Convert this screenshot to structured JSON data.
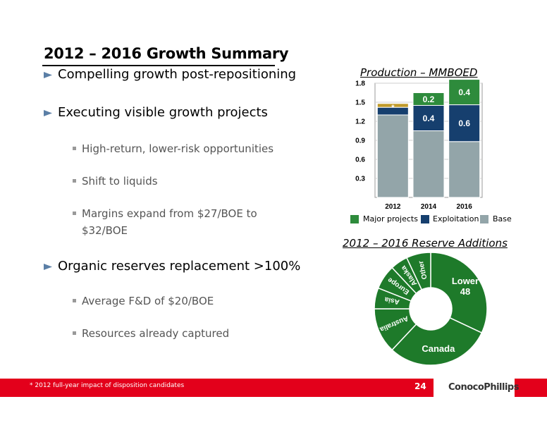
{
  "slide": {
    "title": "2012 – 2016 Growth Summary",
    "page_number": "24",
    "footnote": "* 2012 full-year impact of disposition candidates",
    "logo_text": "ConocoPhillips"
  },
  "bullets": [
    {
      "level": 1,
      "text": "Compelling growth post-repositioning"
    },
    {
      "level": 1,
      "text": "Executing visible growth projects"
    },
    {
      "level": 2,
      "text": "High-return, lower-risk opportunities"
    },
    {
      "level": 2,
      "text": "Shift to liquids"
    },
    {
      "level": 2,
      "text": "Margins expand from $27/BOE to $32/BOE"
    },
    {
      "level": 1,
      "text": "Organic reserves replacement >100%"
    },
    {
      "level": 2,
      "text": "Average F&D of $20/BOE"
    },
    {
      "level": 2,
      "text": "Resources already captured"
    }
  ],
  "chart_data": [
    {
      "type": "bar",
      "title": "Production – MMBOED",
      "stacked": true,
      "categories": [
        "2012",
        "2014",
        "2016"
      ],
      "ylim": [
        0,
        1.8
      ],
      "yticks": [
        "0.3",
        "0.6",
        "0.9",
        "1.2",
        "1.5",
        "1.8"
      ],
      "grid": true,
      "legend_position": "bottom",
      "series": [
        {
          "name": "Base",
          "color": "#93a5a9",
          "values": [
            1.3,
            1.05,
            0.88
          ],
          "labels": [
            "",
            "",
            ""
          ]
        },
        {
          "name": "Exploitation",
          "color": "#163f6e",
          "values": [
            0.12,
            0.4,
            0.58
          ],
          "labels": [
            "",
            "0.4",
            "0.6"
          ]
        },
        {
          "name": "Major projects",
          "color": "#2e8b3c",
          "values": [
            0.0,
            0.2,
            0.4
          ],
          "labels": [
            "",
            "0.2",
            "0.4"
          ]
        }
      ],
      "annotation": {
        "category": "2012",
        "label": "*",
        "value": 0.06,
        "color": "#c09a2a"
      }
    },
    {
      "type": "pie",
      "style": "donut",
      "title": "2012 – 2016 Reserve Additions",
      "color": "#1e7a2a",
      "slices": [
        {
          "label": "Lower 48",
          "value": 32
        },
        {
          "label": "Canada",
          "value": 30
        },
        {
          "label": "Australia",
          "value": 13
        },
        {
          "label": "Asia",
          "value": 6
        },
        {
          "label": "Europe",
          "value": 7
        },
        {
          "label": "Alaska",
          "value": 5
        },
        {
          "label": "Other",
          "value": 7
        }
      ]
    }
  ]
}
